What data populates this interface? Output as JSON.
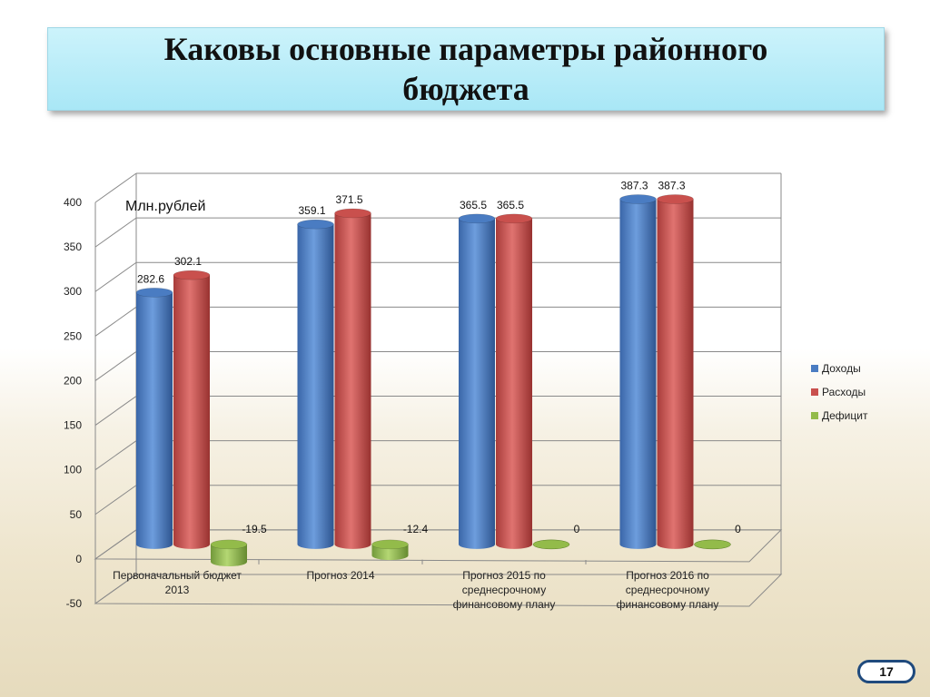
{
  "slide": {
    "title": "Каковы основные параметры районного бюджета",
    "page_number": "17"
  },
  "chart_data": {
    "type": "bar",
    "unit_label": "Млн.рублей",
    "categories": [
      [
        "Первоначальный бюджет",
        "2013"
      ],
      [
        "Прогноз 2014"
      ],
      [
        "Прогноз 2015 по",
        "среднесрочному",
        "финансовому плану"
      ],
      [
        "Прогноз 2016 по",
        "среднесрочному",
        "финансовому плану"
      ]
    ],
    "series": [
      {
        "name": "Доходы",
        "values": [
          282.6,
          359.1,
          365.5,
          387.3
        ],
        "labels": [
          "282.6",
          "359.1",
          "365.5",
          "387.3"
        ],
        "color": "#4a7cc2"
      },
      {
        "name": "Расходы",
        "values": [
          302.1,
          371.5,
          365.5,
          387.3
        ],
        "labels": [
          "302.1",
          "371.5",
          "365.5",
          "387.3"
        ],
        "color": "#c9504d"
      },
      {
        "name": "Дефицит",
        "values": [
          -19.5,
          -12.4,
          0,
          0
        ],
        "labels": [
          "-19.5",
          "-12.4",
          "0",
          "0"
        ],
        "color": "#93bb4a"
      }
    ],
    "ylim": [
      -50,
      400
    ],
    "yticks": [
      -50,
      0,
      50,
      100,
      150,
      200,
      250,
      300,
      350,
      400
    ],
    "legend_position": "right",
    "grid": true
  }
}
